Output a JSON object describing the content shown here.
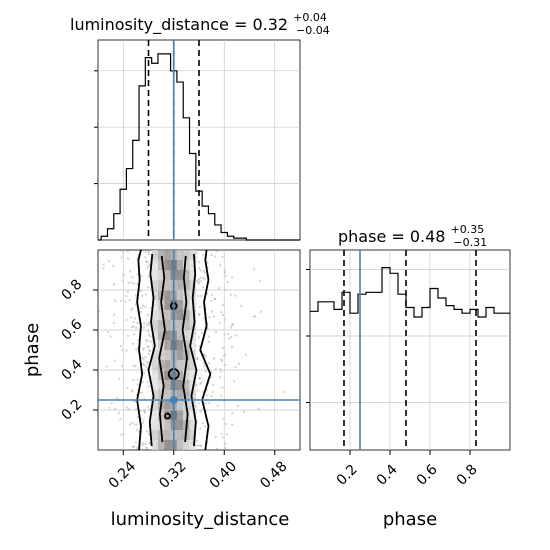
{
  "chart_data": [
    {
      "type": "histogram",
      "panel": "top-left",
      "title": {
        "param": "luminosity_distance",
        "median": "0.32",
        "upper": "+0.04",
        "lower": "−0.04"
      },
      "x_range": [
        0.2,
        0.52
      ],
      "bins_center": [
        0.2,
        0.21,
        0.22,
        0.23,
        0.24,
        0.25,
        0.26,
        0.27,
        0.28,
        0.29,
        0.3,
        0.31,
        0.32,
        0.33,
        0.34,
        0.35,
        0.36,
        0.37,
        0.38,
        0.39,
        0.4,
        0.41,
        0.42,
        0.43,
        0.44,
        0.45,
        0.46,
        0.47,
        0.48,
        0.49,
        0.5,
        0.51
      ],
      "counts": [
        0,
        0.02,
        0.06,
        0.14,
        0.27,
        0.38,
        0.53,
        0.82,
        0.97,
        0.94,
        0.99,
        0.99,
        0.9,
        0.84,
        0.65,
        0.46,
        0.26,
        0.18,
        0.14,
        0.08,
        0.04,
        0.02,
        0.01,
        0.01,
        0,
        0,
        0,
        0,
        0,
        0,
        0,
        0
      ],
      "y_ticks": [
        0.3,
        0.6,
        0.9
      ],
      "quantile_lines": [
        0.28,
        0.32,
        0.36
      ],
      "truth": 0.32
    },
    {
      "type": "scatter",
      "panel": "bottom-left",
      "xlabel": "luminosity_distance",
      "ylabel": "phase",
      "xlim": [
        0.2,
        0.52
      ],
      "ylim": [
        0.0,
        1.0
      ],
      "x_ticks": [
        "0.24",
        "0.32",
        "0.40",
        "0.48"
      ],
      "x_tick_values": [
        0.24,
        0.32,
        0.4,
        0.48
      ],
      "y_ticks": [
        "0.2",
        "0.4",
        "0.6",
        "0.8"
      ],
      "y_tick_values": [
        0.2,
        0.4,
        0.6,
        0.8
      ],
      "truth": {
        "x": 0.32,
        "y": 0.25
      },
      "contours": [
        {
          "x": [
            0.265,
            0.268,
            0.262,
            0.27,
            0.265,
            0.268,
            0.262,
            0.266,
            0.264,
            0.268
          ],
          "y": [
            0.0,
            0.12,
            0.25,
            0.38,
            0.5,
            0.62,
            0.74,
            0.85,
            0.95,
            1.0
          ]
        },
        {
          "x": [
            0.37,
            0.375,
            0.365,
            0.378,
            0.362,
            0.372,
            0.368,
            0.375,
            0.37,
            0.372
          ],
          "y": [
            0.0,
            0.12,
            0.25,
            0.38,
            0.5,
            0.62,
            0.74,
            0.85,
            0.95,
            1.0
          ]
        },
        {
          "x": [
            0.285,
            0.282,
            0.288,
            0.28,
            0.29,
            0.284,
            0.288,
            0.283,
            0.286
          ],
          "y": [
            0.02,
            0.14,
            0.27,
            0.4,
            0.52,
            0.64,
            0.76,
            0.88,
            0.98
          ]
        },
        {
          "x": [
            0.352,
            0.355,
            0.348,
            0.356,
            0.346,
            0.353,
            0.35,
            0.354,
            0.352
          ],
          "y": [
            0.02,
            0.14,
            0.27,
            0.4,
            0.52,
            0.64,
            0.76,
            0.88,
            0.98
          ]
        },
        {
          "x": [
            0.302,
            0.298,
            0.304,
            0.297,
            0.306,
            0.3,
            0.305,
            0.301
          ],
          "y": [
            0.04,
            0.18,
            0.32,
            0.46,
            0.6,
            0.74,
            0.86,
            0.97
          ]
        },
        {
          "x": [
            0.338,
            0.342,
            0.335,
            0.341,
            0.334,
            0.34,
            0.336,
            0.339
          ],
          "y": [
            0.04,
            0.18,
            0.32,
            0.46,
            0.6,
            0.74,
            0.86,
            0.97
          ]
        }
      ]
    },
    {
      "type": "histogram",
      "panel": "bottom-right",
      "title": {
        "param": "phase",
        "median": "0.48",
        "upper": "+0.35",
        "lower": "−0.31"
      },
      "xlabel": "phase",
      "x_range": [
        0.0,
        1.0
      ],
      "x_ticks": [
        "0.2",
        "0.4",
        "0.6",
        "0.8"
      ],
      "x_tick_values": [
        0.2,
        0.4,
        0.6,
        0.8
      ],
      "y_ticks": [
        0.25,
        0.6,
        0.95
      ],
      "bins_edges": [
        0.0,
        0.04,
        0.08,
        0.12,
        0.16,
        0.2,
        0.24,
        0.28,
        0.32,
        0.36,
        0.4,
        0.44,
        0.48,
        0.52,
        0.56,
        0.6,
        0.64,
        0.68,
        0.72,
        0.76,
        0.8,
        0.84,
        0.88,
        0.92,
        0.96,
        1.0
      ],
      "counts": [
        0.73,
        0.78,
        0.78,
        0.74,
        0.83,
        0.72,
        0.82,
        0.83,
        0.83,
        0.96,
        0.93,
        0.82,
        0.75,
        0.7,
        0.75,
        0.85,
        0.8,
        0.76,
        0.74,
        0.72,
        0.74,
        0.7,
        0.75,
        0.72,
        0.72
      ],
      "quantile_lines": [
        0.17,
        0.48,
        0.83
      ],
      "truth": 0.25
    }
  ]
}
